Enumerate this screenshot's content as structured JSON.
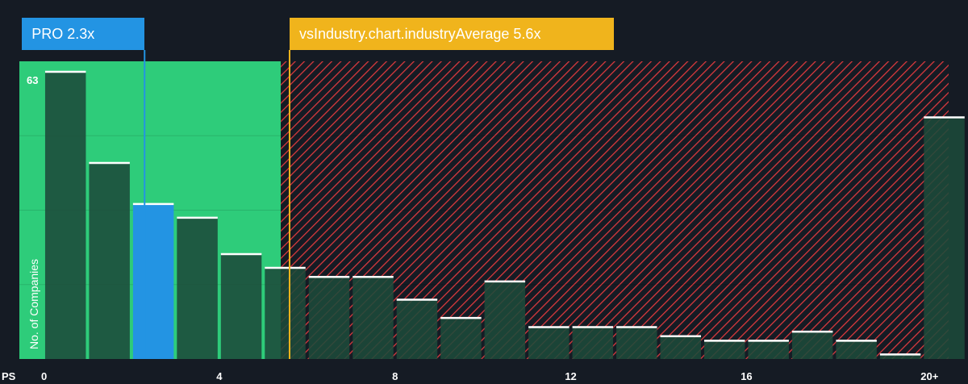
{
  "chart_data": {
    "type": "bar",
    "x_axis_label": "PS",
    "y_axis_label": "No. of Companies",
    "y_max_label": "63",
    "x_ticks": [
      "0",
      "4",
      "8",
      "12",
      "16",
      "20+"
    ],
    "x_tick_values": [
      0,
      4,
      8,
      12,
      16,
      20
    ],
    "x_range": [
      -0.55,
      20.6
    ],
    "y_range": [
      0,
      63
    ],
    "bins": [
      {
        "x0": 0,
        "x1": 1,
        "value": 63
      },
      {
        "x0": 1,
        "x1": 2,
        "value": 43
      },
      {
        "x0": 2,
        "x1": 3,
        "value": 34
      },
      {
        "x0": 3,
        "x1": 4,
        "value": 31
      },
      {
        "x0": 4,
        "x1": 5,
        "value": 23
      },
      {
        "x0": 5,
        "x1": 6,
        "value": 20
      },
      {
        "x0": 6,
        "x1": 7,
        "value": 18
      },
      {
        "x0": 7,
        "x1": 8,
        "value": 18
      },
      {
        "x0": 8,
        "x1": 9,
        "value": 13
      },
      {
        "x0": 9,
        "x1": 10,
        "value": 9
      },
      {
        "x0": 10,
        "x1": 11,
        "value": 17
      },
      {
        "x0": 11,
        "x1": 12,
        "value": 7
      },
      {
        "x0": 12,
        "x1": 13,
        "value": 7
      },
      {
        "x0": 13,
        "x1": 14,
        "value": 7
      },
      {
        "x0": 14,
        "x1": 15,
        "value": 5
      },
      {
        "x0": 15,
        "x1": 16,
        "value": 4
      },
      {
        "x0": 16,
        "x1": 17,
        "value": 4
      },
      {
        "x0": 17,
        "x1": 18,
        "value": 6
      },
      {
        "x0": 18,
        "x1": 19,
        "value": 4
      },
      {
        "x0": 19,
        "x1": 20,
        "value": 1
      },
      {
        "x0": 20,
        "x1": 21,
        "value": 53
      }
    ],
    "company": {
      "label": "PRO 2.3x",
      "value": 2.3
    },
    "industry_average": {
      "label": "vsIndustry.chart.industryAverage 5.6x",
      "value": 5.6
    },
    "fair_zone_max": 5.4,
    "colors": {
      "background": "#151b24",
      "fair_zone": "#2ecc7a",
      "bar_dark": "#1c4a3a",
      "bar_highlight": "#2394e3",
      "overvalued_hatch": "#e03a3e",
      "company_line": "#2394e3",
      "industry_line": "#f0b41c",
      "bar_cap": "#ffffff"
    },
    "grid": false
  }
}
